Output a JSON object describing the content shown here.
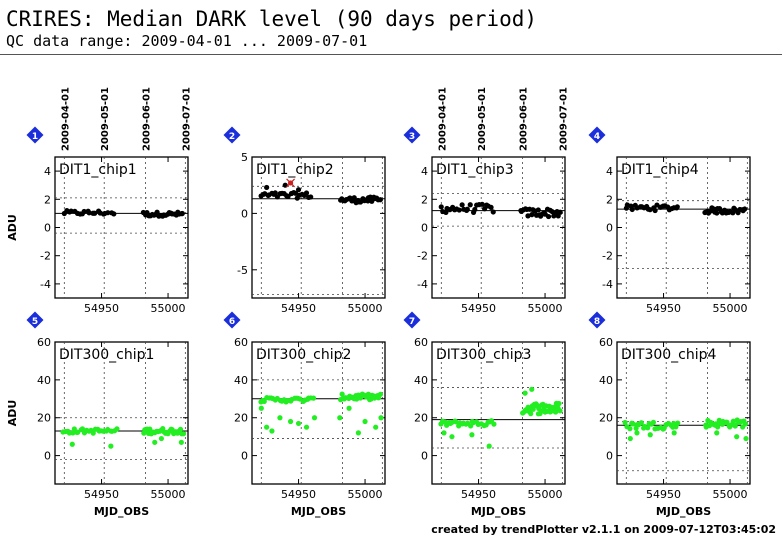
{
  "header": {
    "title": "CRIRES: Median DARK level (90 days period)",
    "subtitle": "QC data range: 2009-04-01 ... 2009-07-01"
  },
  "footer": "created by trendPlotter v2.1.1 on 2009-07-12T03:45:02",
  "colors": {
    "row1_points": "#000000",
    "row2_points": "#22ee22",
    "outlier": "#cc2222",
    "badge": "#1a2edc"
  },
  "chart_data": {
    "type": "scatter",
    "x_label": "MJD_OBS",
    "y_label": "ADU",
    "xlim": [
      54915,
      55015
    ],
    "x_ticks": [
      54950,
      55000
    ],
    "date_ticks": [
      {
        "label": "2009-04-01",
        "mjd": 54922
      },
      {
        "label": "2009-05-01",
        "mjd": 54952
      },
      {
        "label": "2009-06-01",
        "mjd": 54983
      },
      {
        "label": "2009-07-01",
        "mjd": 55013
      }
    ],
    "panels": [
      {
        "id": "1",
        "label": "DIT1_chip1",
        "ylim": [
          -5,
          5
        ],
        "yticks": [
          -4,
          -2,
          0,
          2,
          4
        ],
        "median": 1.0,
        "limits": [
          2.1,
          -0.4
        ],
        "clusters": [
          [
            54921,
            54960,
            1.05,
            0.15,
            20
          ],
          [
            54981,
            55012,
            0.95,
            0.15,
            24
          ]
        ]
      },
      {
        "id": "2",
        "label": "DIT1_chip2",
        "ylim": [
          -7.5,
          5
        ],
        "yticks": [
          -5,
          0,
          5
        ],
        "median": 1.3,
        "limits": [
          2.4,
          -7.2
        ],
        "clusters": [
          [
            54921,
            54960,
            1.6,
            0.25,
            24
          ],
          [
            54981,
            55012,
            1.2,
            0.25,
            26
          ]
        ],
        "extra": [
          [
            54926,
            2.3
          ],
          [
            54940,
            2.5
          ],
          [
            54950,
            2.1
          ]
        ],
        "outliers": [
          [
            54944,
            2.7
          ]
        ]
      },
      {
        "id": "3",
        "label": "DIT1_chip3",
        "ylim": [
          -5,
          5
        ],
        "yticks": [
          -4,
          -2,
          0,
          2,
          4
        ],
        "median": 1.2,
        "limits": [
          2.4,
          0.1
        ],
        "clusters": [
          [
            54921,
            54962,
            1.35,
            0.3,
            24
          ],
          [
            54981,
            55012,
            1.05,
            0.3,
            26
          ]
        ]
      },
      {
        "id": "4",
        "label": "DIT1_chip4",
        "ylim": [
          -5,
          5
        ],
        "yticks": [
          -4,
          -2,
          0,
          2,
          4
        ],
        "median": 1.3,
        "limits": [
          1.9,
          -2.9
        ],
        "clusters": [
          [
            54921,
            54962,
            1.4,
            0.2,
            24
          ],
          [
            54981,
            55012,
            1.2,
            0.2,
            26
          ]
        ]
      },
      {
        "id": "5",
        "label": "DIT300_chip1",
        "ylim": [
          -15,
          60
        ],
        "yticks": [
          0,
          20,
          40,
          60
        ],
        "median": 13,
        "limits": [
          20,
          -2
        ],
        "clusters": [
          [
            54921,
            54962,
            13,
            1.2,
            26
          ],
          [
            54981,
            55012,
            13,
            1.5,
            30
          ]
        ],
        "extra": [
          [
            54928,
            6
          ],
          [
            54957,
            5
          ],
          [
            54990,
            7
          ],
          [
            55010,
            7
          ],
          [
            54995,
            9
          ]
        ]
      },
      {
        "id": "6",
        "label": "DIT300_chip2",
        "ylim": [
          -15,
          60
        ],
        "yticks": [
          0,
          20,
          40,
          60
        ],
        "median": 30,
        "limits": [
          40,
          9
        ],
        "clusters": [
          [
            54921,
            54962,
            29.5,
            1.2,
            26
          ],
          [
            54981,
            55012,
            31,
            1.5,
            30
          ]
        ],
        "extra": [
          [
            54922,
            25
          ],
          [
            54926,
            15
          ],
          [
            54930,
            13
          ],
          [
            54936,
            20
          ],
          [
            54944,
            18
          ],
          [
            54950,
            17
          ],
          [
            54956,
            15
          ],
          [
            54962,
            20
          ],
          [
            54981,
            20
          ],
          [
            54988,
            25
          ],
          [
            54995,
            12
          ],
          [
            55000,
            18
          ],
          [
            55008,
            15
          ],
          [
            55012,
            20
          ],
          [
            54992,
            30
          ],
          [
            55003,
            32
          ]
        ]
      },
      {
        "id": "7",
        "label": "DIT300_chip3",
        "ylim": [
          -15,
          60
        ],
        "yticks": [
          0,
          20,
          40,
          60
        ],
        "median": 19,
        "limits": [
          36,
          4
        ],
        "clusters": [
          [
            54921,
            54962,
            17,
            1.5,
            28
          ],
          [
            54983,
            55012,
            25,
            3.0,
            38
          ]
        ],
        "extra": [
          [
            54924,
            12
          ],
          [
            54930,
            10
          ],
          [
            54945,
            11
          ],
          [
            54958,
            5
          ],
          [
            54985,
            33
          ],
          [
            54990,
            35
          ]
        ]
      },
      {
        "id": "8",
        "label": "DIT300_chip4",
        "ylim": [
          -15,
          60
        ],
        "yticks": [
          0,
          20,
          40,
          60
        ],
        "median": 16,
        "limits": [
          18,
          -8
        ],
        "clusters": [
          [
            54921,
            54962,
            16,
            2.0,
            28
          ],
          [
            54981,
            55012,
            17,
            2.0,
            30
          ]
        ],
        "extra": [
          [
            54925,
            9
          ],
          [
            54930,
            12
          ],
          [
            54940,
            11
          ],
          [
            54958,
            12
          ],
          [
            54990,
            12
          ],
          [
            55005,
            10
          ],
          [
            55012,
            9
          ]
        ]
      }
    ]
  }
}
